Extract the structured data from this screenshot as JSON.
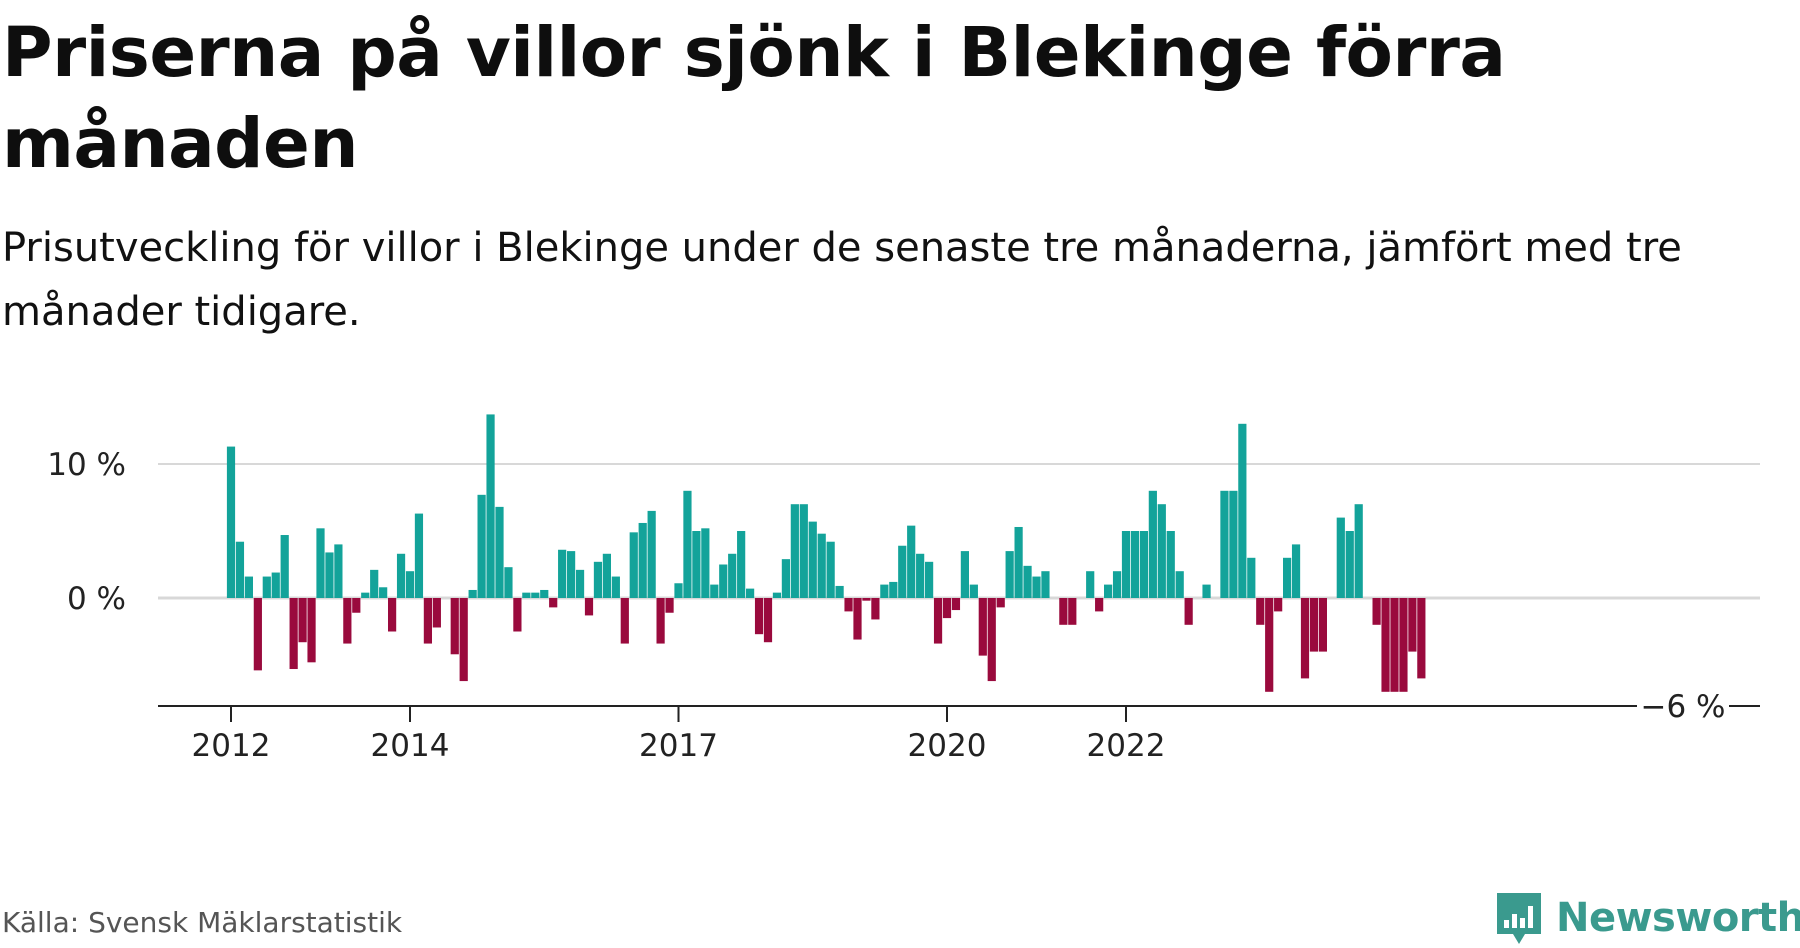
{
  "header": {
    "title": "Priserna på villor sjönk i Blekinge förra månaden",
    "subtitle": "Prisutveckling för villor i Blekinge under de senaste tre månaderna, jämfört med tre månader tidigare."
  },
  "footer": {
    "source": "Källa: Svensk Mäklarstatistik",
    "brand": "Newsworthy"
  },
  "colors": {
    "positive": "#13a39a",
    "negative": "#9a0a3d",
    "gridline": "#d8d8d8",
    "axis": "#222222",
    "brand": "#3a9a8e"
  },
  "icons": {
    "brand_logo": "bar-chart-speech-bubble-icon"
  },
  "chart_data": {
    "type": "bar",
    "xlabel": "",
    "ylabel": "",
    "ylim": [
      -8,
      14
    ],
    "grid": true,
    "legend": "none",
    "y_ticks": [
      {
        "value": 0,
        "label": "0 %"
      },
      {
        "value": 10,
        "label": "10 %"
      }
    ],
    "x_ticks": [
      {
        "index": 0,
        "label": "2012"
      },
      {
        "index": 20,
        "label": "2014"
      },
      {
        "index": 50,
        "label": "2017"
      },
      {
        "index": 80,
        "label": "2020"
      },
      {
        "index": 100,
        "label": "2022"
      }
    ],
    "last_value_label": "−6 %",
    "values": [
      11.3,
      4.2,
      1.6,
      -5.4,
      1.6,
      1.9,
      4.7,
      -5.3,
      -3.3,
      -4.8,
      5.2,
      3.4,
      4.0,
      -3.4,
      -1.1,
      0.4,
      2.1,
      0.8,
      -2.5,
      3.3,
      2.0,
      6.3,
      -3.4,
      -2.2,
      0.0,
      -4.2,
      -6.2,
      0.6,
      7.7,
      13.7,
      6.8,
      2.3,
      -2.5,
      0.4,
      0.4,
      0.6,
      -0.7,
      3.6,
      3.5,
      2.1,
      -1.3,
      2.7,
      3.3,
      1.6,
      -3.4,
      4.9,
      5.6,
      6.5,
      -3.4,
      -1.1,
      1.1,
      8.0,
      5.0,
      5.2,
      1.0,
      2.5,
      3.3,
      5.0,
      0.7,
      -2.7,
      -3.3,
      0.4,
      2.9,
      7.0,
      7.0,
      5.7,
      4.8,
      4.2,
      0.9,
      -1.0,
      -3.1,
      -0.2,
      -1.6,
      1.0,
      1.2,
      3.9,
      5.4,
      3.3,
      2.7,
      -3.4,
      -1.5,
      -0.9,
      3.5,
      1.0,
      -4.3,
      -6.2,
      -0.7,
      3.5,
      5.3,
      2.4,
      1.6,
      2.0,
      0.0,
      -2.0,
      -2.0,
      0.0,
      2.0,
      -1.0,
      1.0,
      2.0,
      5.0,
      5.0,
      5.0,
      8.0,
      7.0,
      5.0,
      2.0,
      -2.0,
      0.0,
      1.0,
      0.0,
      8.0,
      8.0,
      13.0,
      3.0,
      -2.0,
      -7.0,
      -1.0,
      3.0,
      4.0,
      -6.0,
      -4.0,
      -4.0,
      0.0,
      6.0,
      5.0,
      7.0,
      0.0,
      -2.0,
      -7.0,
      -7.0,
      -7.0,
      -4.0,
      -6.0
    ]
  }
}
